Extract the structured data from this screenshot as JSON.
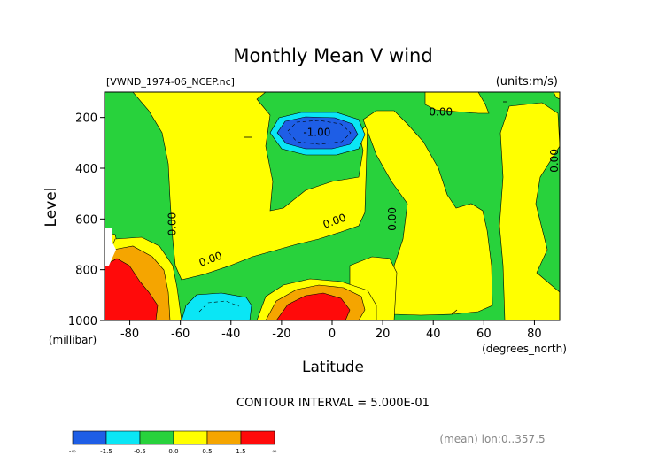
{
  "chart_data": {
    "type": "heatmap",
    "title": "Monthly Mean V wind",
    "file_label": "[VWND_1974-06_NCEP.nc]",
    "units_label": "(units:m/s)",
    "ylabel": "Level",
    "ylabel_unit": "(millibar)",
    "xlabel": "Latitude",
    "xlabel_unit": "(degrees_north)",
    "xlim": [
      -90,
      90
    ],
    "ylim_mb": [
      1000,
      100
    ],
    "x_ticks": [
      -80,
      -60,
      -40,
      -20,
      0,
      20,
      40,
      60,
      80
    ],
    "x_tick_labels": [
      "-80",
      "-60",
      "-40",
      "-20",
      "0",
      "20",
      "40",
      "60",
      "80"
    ],
    "y_ticks": [
      200,
      400,
      600,
      800,
      1000
    ],
    "y_tick_labels": [
      "200",
      "400",
      "600",
      "800",
      "1000"
    ],
    "contour_labels": [
      {
        "text": "0.00",
        "lat": 43,
        "level": 180,
        "rot": 0
      },
      {
        "text": "-1.00",
        "lat": -6,
        "level": 260,
        "rot": 0
      },
      {
        "text": "0.00",
        "lat": -63,
        "level": 620,
        "rot": -90
      },
      {
        "text": "0.00",
        "lat": 1,
        "level": 610,
        "rot": -20
      },
      {
        "text": "0.00",
        "lat": -48,
        "level": 760,
        "rot": -20
      },
      {
        "text": "0.00",
        "lat": 24,
        "level": 600,
        "rot": -90
      },
      {
        "text": "0.00",
        "lat": 88,
        "level": 370,
        "rot": -90
      }
    ],
    "contour_interval_text": "CONTOUR INTERVAL = 5.000E-01",
    "mean_text": "(mean) lon:0..357.5",
    "colorbar": {
      "colors": [
        "#1e5ee6",
        "#0ae6f5",
        "#28d23c",
        "#ffff00",
        "#f5a500",
        "#ff0a0a"
      ],
      "labels": [
        "-∞",
        "-1.5",
        "-0.5",
        "0.0",
        "0.5",
        "1.5",
        "∞"
      ]
    }
  }
}
